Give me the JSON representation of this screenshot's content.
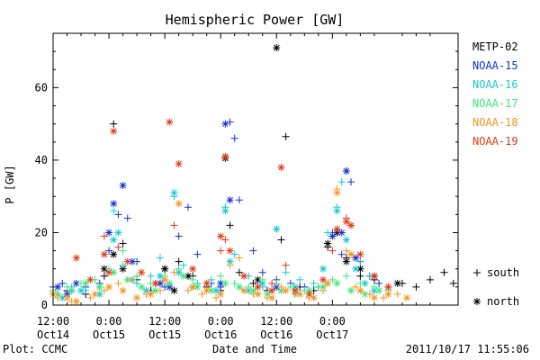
{
  "chart_data": {
    "type": "scatter",
    "title": "Hemispheric Power [GW]",
    "ylabel": "P [GW]",
    "xlabel": "Date and Time",
    "ylim": [
      0,
      75
    ],
    "xlim": [
      0,
      87
    ],
    "yticks": [
      0,
      20,
      40,
      60
    ],
    "xticks": [
      {
        "x": 0,
        "line1": "12:00",
        "line2": "Oct14"
      },
      {
        "x": 12,
        "line1": "0:00",
        "line2": "Oct15"
      },
      {
        "x": 24,
        "line1": "12:00",
        "line2": "Oct15"
      },
      {
        "x": 36,
        "line1": "0:00",
        "line2": "Oct16"
      },
      {
        "x": 48,
        "line1": "12:00",
        "line2": "Oct16"
      },
      {
        "x": 60,
        "line1": "0:00",
        "line2": "Oct17"
      }
    ],
    "markers": {
      "south": "+",
      "north": "*"
    },
    "marker_legend": [
      {
        "symbol": "+",
        "label": "south"
      },
      {
        "symbol": "*",
        "label": "north"
      }
    ],
    "series": [
      {
        "name": "METP-02",
        "color": "#000000",
        "south": [
          [
            3,
            4
          ],
          [
            7,
            3
          ],
          [
            11,
            8
          ],
          [
            13,
            50
          ],
          [
            15,
            17
          ],
          [
            18,
            7
          ],
          [
            21,
            4
          ],
          [
            24,
            10
          ],
          [
            27,
            12
          ],
          [
            30,
            8
          ],
          [
            33,
            5
          ],
          [
            36,
            4
          ],
          [
            38,
            22
          ],
          [
            40,
            9
          ],
          [
            43,
            6
          ],
          [
            46,
            4
          ],
          [
            49,
            18
          ],
          [
            50,
            46.5
          ],
          [
            53,
            5
          ],
          [
            56,
            4
          ],
          [
            59,
            16
          ],
          [
            61,
            21
          ],
          [
            63,
            13
          ],
          [
            66,
            8
          ],
          [
            69,
            7
          ],
          [
            72,
            5
          ],
          [
            75,
            6
          ],
          [
            78,
            5
          ],
          [
            81,
            7
          ],
          [
            84,
            9
          ],
          [
            86,
            6
          ]
        ],
        "north": [
          [
            11,
            10
          ],
          [
            13,
            14
          ],
          [
            15,
            10
          ],
          [
            24,
            10
          ],
          [
            26,
            4
          ],
          [
            29,
            8
          ],
          [
            37,
            40.5
          ],
          [
            44,
            7
          ],
          [
            48,
            71
          ],
          [
            59,
            17
          ],
          [
            61,
            20
          ],
          [
            63,
            12
          ],
          [
            66,
            10
          ],
          [
            69,
            8
          ],
          [
            74,
            6
          ]
        ]
      },
      {
        "name": "NOAA-15",
        "color": "#1530d0",
        "south": [
          [
            0,
            5
          ],
          [
            2,
            6
          ],
          [
            4,
            4
          ],
          [
            7,
            5
          ],
          [
            10,
            6
          ],
          [
            12,
            15
          ],
          [
            14,
            25
          ],
          [
            16,
            24
          ],
          [
            18,
            12
          ],
          [
            22,
            6
          ],
          [
            24,
            5
          ],
          [
            27,
            19
          ],
          [
            29,
            27
          ],
          [
            31,
            14
          ],
          [
            34,
            6
          ],
          [
            36,
            5
          ],
          [
            38,
            50.5
          ],
          [
            39,
            46
          ],
          [
            40,
            29
          ],
          [
            43,
            15
          ],
          [
            45,
            9
          ],
          [
            48,
            7
          ],
          [
            51,
            6
          ],
          [
            54,
            5
          ],
          [
            57,
            5
          ],
          [
            60,
            20
          ],
          [
            62,
            14
          ],
          [
            63,
            37
          ],
          [
            64,
            34
          ],
          [
            66,
            12
          ],
          [
            68,
            8
          ],
          [
            70,
            6
          ]
        ],
        "north": [
          [
            1,
            5
          ],
          [
            3,
            3
          ],
          [
            5,
            6
          ],
          [
            12,
            20
          ],
          [
            13,
            28
          ],
          [
            15,
            33
          ],
          [
            17,
            12
          ],
          [
            23,
            6
          ],
          [
            25,
            5
          ],
          [
            36,
            6
          ],
          [
            37,
            50
          ],
          [
            38,
            29
          ],
          [
            48,
            5
          ],
          [
            60,
            19
          ],
          [
            62,
            20
          ],
          [
            63,
            37
          ],
          [
            65,
            13
          ]
        ]
      },
      {
        "name": "NOAA-16",
        "color": "#17c8d8",
        "south": [
          [
            1,
            3
          ],
          [
            4,
            5
          ],
          [
            7,
            4
          ],
          [
            10,
            5
          ],
          [
            13,
            26
          ],
          [
            15,
            11
          ],
          [
            18,
            6
          ],
          [
            21,
            8
          ],
          [
            23,
            13
          ],
          [
            26,
            30
          ],
          [
            28,
            11
          ],
          [
            31,
            6
          ],
          [
            34,
            7
          ],
          [
            37,
            27
          ],
          [
            39,
            14
          ],
          [
            42,
            8
          ],
          [
            45,
            5
          ],
          [
            48,
            21
          ],
          [
            50,
            9
          ],
          [
            53,
            7
          ],
          [
            56,
            6
          ],
          [
            59,
            20
          ],
          [
            61,
            27
          ],
          [
            62,
            34
          ],
          [
            64,
            22
          ],
          [
            66,
            12
          ],
          [
            68,
            8
          ]
        ],
        "north": [
          [
            2,
            2
          ],
          [
            6,
            4
          ],
          [
            10,
            3
          ],
          [
            13,
            18
          ],
          [
            14,
            20
          ],
          [
            17,
            7
          ],
          [
            20,
            4
          ],
          [
            23,
            8
          ],
          [
            26,
            31
          ],
          [
            27,
            9
          ],
          [
            30,
            5
          ],
          [
            35,
            4
          ],
          [
            37,
            26
          ],
          [
            38,
            12
          ],
          [
            42,
            4
          ],
          [
            45,
            6
          ],
          [
            48,
            21
          ],
          [
            52,
            5
          ],
          [
            58,
            10
          ],
          [
            61,
            26
          ],
          [
            63,
            18
          ],
          [
            65,
            10
          ],
          [
            67,
            6
          ],
          [
            69,
            4
          ]
        ]
      },
      {
        "name": "NOAA-17",
        "color": "#3de87a",
        "south": [
          [
            0,
            4
          ],
          [
            3,
            5
          ],
          [
            6,
            6
          ],
          [
            9,
            7
          ],
          [
            12,
            10
          ],
          [
            15,
            15
          ],
          [
            18,
            8
          ],
          [
            21,
            6
          ],
          [
            24,
            8
          ],
          [
            27,
            10
          ],
          [
            30,
            7
          ],
          [
            33,
            6
          ],
          [
            36,
            8
          ],
          [
            39,
            6
          ],
          [
            42,
            5
          ],
          [
            45,
            7
          ],
          [
            48,
            6
          ],
          [
            51,
            5
          ],
          [
            54,
            4
          ],
          [
            57,
            5
          ],
          [
            60,
            7
          ],
          [
            63,
            8
          ],
          [
            66,
            6
          ],
          [
            69,
            5
          ],
          [
            72,
            4
          ]
        ],
        "north": [
          [
            1,
            3
          ],
          [
            4,
            4
          ],
          [
            7,
            6
          ],
          [
            10,
            5
          ],
          [
            13,
            9
          ],
          [
            16,
            7
          ],
          [
            19,
            5
          ],
          [
            22,
            4
          ],
          [
            25,
            6
          ],
          [
            28,
            8
          ],
          [
            31,
            5
          ],
          [
            34,
            4
          ],
          [
            37,
            6
          ],
          [
            40,
            5
          ],
          [
            43,
            4
          ],
          [
            46,
            3
          ],
          [
            49,
            4
          ],
          [
            52,
            3
          ],
          [
            55,
            4
          ],
          [
            58,
            5
          ],
          [
            61,
            6
          ],
          [
            64,
            4
          ],
          [
            67,
            3
          ],
          [
            70,
            4
          ]
        ]
      },
      {
        "name": "NOAA-18",
        "color": "#f0961e",
        "south": [
          [
            1,
            2
          ],
          [
            4,
            1
          ],
          [
            8,
            2
          ],
          [
            11,
            4
          ],
          [
            14,
            6
          ],
          [
            17,
            7
          ],
          [
            20,
            3
          ],
          [
            23,
            4
          ],
          [
            26,
            9
          ],
          [
            29,
            4
          ],
          [
            32,
            3
          ],
          [
            35,
            2
          ],
          [
            38,
            11
          ],
          [
            40,
            13
          ],
          [
            43,
            3
          ],
          [
            46,
            2
          ],
          [
            49,
            5
          ],
          [
            52,
            3
          ],
          [
            55,
            2
          ],
          [
            58,
            4
          ],
          [
            61,
            32
          ],
          [
            63,
            15
          ],
          [
            65,
            5
          ],
          [
            68,
            3
          ],
          [
            71,
            2
          ],
          [
            74,
            3
          ]
        ],
        "north": [
          [
            0,
            3
          ],
          [
            3,
            2
          ],
          [
            5,
            1
          ],
          [
            9,
            3
          ],
          [
            12,
            5
          ],
          [
            15,
            4
          ],
          [
            18,
            2
          ],
          [
            21,
            3
          ],
          [
            24,
            7
          ],
          [
            27,
            28
          ],
          [
            30,
            5
          ],
          [
            33,
            4
          ],
          [
            36,
            3
          ],
          [
            37,
            41
          ],
          [
            41,
            4
          ],
          [
            44,
            3
          ],
          [
            47,
            2
          ],
          [
            50,
            4
          ],
          [
            53,
            3
          ],
          [
            56,
            2
          ],
          [
            59,
            6
          ],
          [
            61,
            31
          ],
          [
            64,
            14
          ],
          [
            66,
            4
          ],
          [
            69,
            2
          ],
          [
            72,
            3
          ],
          [
            76,
            2
          ]
        ]
      },
      {
        "name": "NOAA-19",
        "color": "#e33a1a",
        "south": [
          [
            11,
            19
          ],
          [
            14,
            16
          ],
          [
            26,
            22
          ],
          [
            36,
            15
          ],
          [
            37,
            18
          ],
          [
            47,
            6
          ],
          [
            50,
            11
          ],
          [
            60,
            15
          ],
          [
            63,
            24
          ]
        ],
        "north": [
          [
            5,
            13
          ],
          [
            8,
            7
          ],
          [
            11,
            14
          ],
          [
            12,
            9
          ],
          [
            13,
            48
          ],
          [
            16,
            12
          ],
          [
            19,
            9
          ],
          [
            22,
            6
          ],
          [
            25,
            50.5
          ],
          [
            27,
            39
          ],
          [
            30,
            10
          ],
          [
            33,
            6
          ],
          [
            36,
            19
          ],
          [
            37,
            41
          ],
          [
            38,
            15
          ],
          [
            41,
            8
          ],
          [
            44,
            5
          ],
          [
            47,
            4
          ],
          [
            49,
            38
          ],
          [
            52,
            4
          ],
          [
            55,
            3
          ],
          [
            58,
            7
          ],
          [
            61,
            21
          ],
          [
            63,
            23
          ],
          [
            64,
            22
          ],
          [
            66,
            14
          ],
          [
            69,
            8
          ],
          [
            72,
            5
          ]
        ]
      }
    ]
  },
  "footer": {
    "left": "Plot: CCMC",
    "right": "2011/10/17 11:55:06"
  }
}
